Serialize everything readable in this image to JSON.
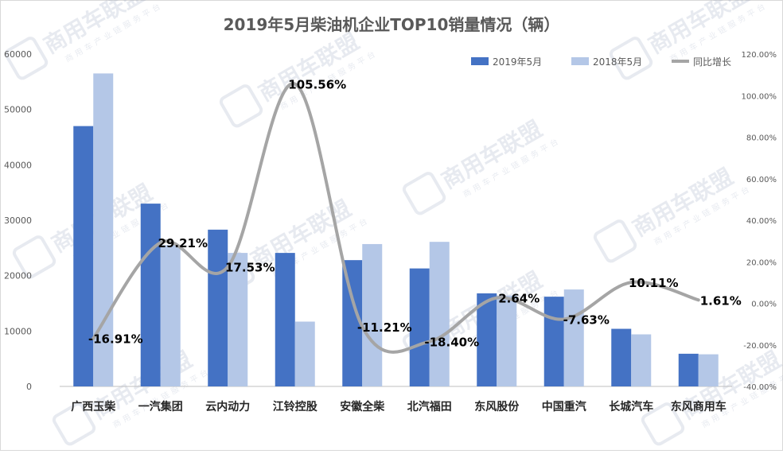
{
  "chart_data": {
    "type": "bar",
    "title": "2019年5月柴油机企业TOP10销量情况（辆）",
    "categories": [
      "广西玉柴",
      "一汽集团",
      "云内动力",
      "江铃控股",
      "安徽全柴",
      "北汽福田",
      "东风股份",
      "中国重汽",
      "长城汽车",
      "东风商用车"
    ],
    "series": [
      {
        "name": "2019年5月",
        "kind": "bar",
        "axis": "left",
        "color": "#4472C4",
        "values": [
          47000,
          33000,
          28300,
          24100,
          22800,
          21300,
          16800,
          16200,
          10400,
          5900
        ]
      },
      {
        "name": "2018年5月",
        "kind": "bar",
        "axis": "left",
        "color": "#B4C7E7",
        "values": [
          56500,
          25500,
          24100,
          11700,
          25700,
          26100,
          16400,
          17500,
          9400,
          5800
        ]
      },
      {
        "name": "同比增长",
        "kind": "line",
        "axis": "right",
        "color": "#A5A5A5",
        "values": [
          -16.91,
          29.21,
          17.53,
          105.56,
          -11.21,
          -18.4,
          2.64,
          -7.63,
          10.11,
          1.61
        ],
        "labels": [
          "-16.91%",
          "29.21%",
          "17.53%",
          "105.56%",
          "-11.21%",
          "-18.40%",
          "2.64%",
          "-7.63%",
          "10.11%",
          "1.61%"
        ]
      }
    ],
    "left_axis": {
      "min": 0,
      "max": 60000,
      "ticks": [
        "0",
        "10000",
        "20000",
        "30000",
        "40000",
        "50000",
        "60000"
      ]
    },
    "right_axis": {
      "min": -40,
      "max": 120,
      "ticks": [
        "-40.00%",
        "-20.00%",
        "0.00%",
        "20.00%",
        "40.00%",
        "60.00%",
        "80.00%",
        "100.00%",
        "120.00%"
      ]
    },
    "grid": false,
    "legend_position": "top-right"
  },
  "watermark": {
    "text": "商用车联盟",
    "subtext": "商用车产业链服务平台"
  }
}
